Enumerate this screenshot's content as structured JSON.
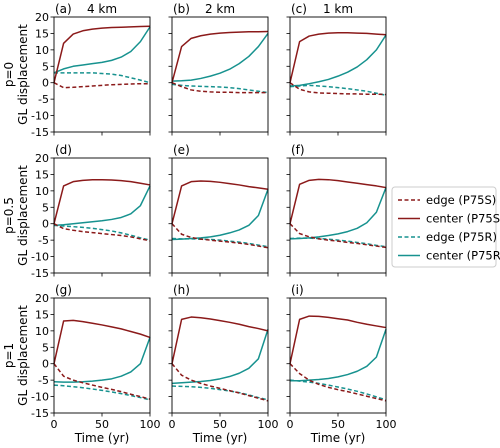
{
  "figure": {
    "legend": {
      "placement": "right",
      "entries": [
        {
          "label": "edge (P75S)",
          "color": "#8b1a1a",
          "dash": true
        },
        {
          "label": "center (P75S)",
          "color": "#8b1a1a",
          "dash": false
        },
        {
          "label": "edge (P75R)",
          "color": "#17928f",
          "dash": true
        },
        {
          "label": "center (P75R)",
          "color": "#17928f",
          "dash": false
        }
      ]
    },
    "colors": {
      "P75S": "#8b1a1a",
      "P75R": "#17928f"
    }
  },
  "chart_data": [
    {
      "type": "line",
      "panel": "(a)",
      "column_title": "4 km",
      "row_label": "p=0",
      "ylabel": "GL displacement",
      "xlabel": "",
      "xlim": [
        0,
        100
      ],
      "ylim": [
        -15,
        20
      ],
      "x": [
        0,
        10,
        20,
        30,
        40,
        50,
        60,
        70,
        80,
        90,
        100
      ],
      "series": [
        {
          "name": "edge (P75S)",
          "values": [
            0,
            -1.5,
            -1.4,
            -1.2,
            -1.0,
            -0.8,
            -0.6,
            -0.5,
            -0.4,
            -0.3,
            -0.3
          ]
        },
        {
          "name": "center (P75S)",
          "values": [
            0,
            12,
            14.8,
            15.8,
            16.3,
            16.6,
            16.8,
            16.9,
            17.0,
            17.1,
            17.2
          ]
        },
        {
          "name": "edge (P75R)",
          "values": [
            3,
            3,
            3,
            3,
            3,
            2.8,
            2.6,
            2.2,
            1.5,
            0.8,
            0
          ]
        },
        {
          "name": "center (P75R)",
          "values": [
            3,
            4.2,
            5.0,
            5.4,
            5.8,
            6.2,
            6.8,
            7.8,
            9.5,
            12.5,
            17.0
          ]
        }
      ]
    },
    {
      "type": "line",
      "panel": "(b)",
      "column_title": "2 km",
      "row_label": "",
      "ylabel": "",
      "xlabel": "",
      "xlim": [
        0,
        100
      ],
      "ylim": [
        -15,
        20
      ],
      "x": [
        0,
        10,
        20,
        30,
        40,
        50,
        60,
        70,
        80,
        90,
        100
      ],
      "series": [
        {
          "name": "edge (P75S)",
          "values": [
            0,
            -1.2,
            -2.2,
            -2.6,
            -2.8,
            -2.9,
            -2.9,
            -3.0,
            -3.0,
            -3.0,
            -3.0
          ]
        },
        {
          "name": "center (P75S)",
          "values": [
            0,
            11,
            13.5,
            14.3,
            14.8,
            15.1,
            15.3,
            15.4,
            15.5,
            15.5,
            15.6
          ]
        },
        {
          "name": "edge (P75R)",
          "values": [
            -0.5,
            -0.8,
            -1.0,
            -1.1,
            -1.2,
            -1.3,
            -1.5,
            -1.8,
            -2.2,
            -2.6,
            -3.0
          ]
        },
        {
          "name": "center (P75R)",
          "values": [
            0.5,
            0.6,
            0.8,
            1.3,
            2.0,
            2.9,
            4.1,
            5.8,
            8.0,
            11.0,
            15.0
          ]
        }
      ]
    },
    {
      "type": "line",
      "panel": "(c)",
      "column_title": "1 km",
      "row_label": "",
      "ylabel": "",
      "xlabel": "",
      "xlim": [
        0,
        100
      ],
      "ylim": [
        -15,
        20
      ],
      "x": [
        0,
        10,
        20,
        30,
        40,
        50,
        60,
        70,
        80,
        90,
        100
      ],
      "series": [
        {
          "name": "edge (P75S)",
          "values": [
            0,
            -2.0,
            -2.8,
            -3.1,
            -3.2,
            -3.3,
            -3.4,
            -3.4,
            -3.5,
            -3.5,
            -3.6
          ]
        },
        {
          "name": "center (P75S)",
          "values": [
            0,
            12.5,
            14.2,
            14.8,
            15.1,
            15.2,
            15.2,
            15.1,
            15.0,
            14.8,
            14.6
          ]
        },
        {
          "name": "edge (P75R)",
          "values": [
            -1.2,
            -1.0,
            -0.8,
            -1.0,
            -1.2,
            -1.5,
            -1.8,
            -2.2,
            -2.6,
            -3.2,
            -3.8
          ]
        },
        {
          "name": "center (P75R)",
          "values": [
            -1.0,
            -0.8,
            -0.3,
            0.3,
            1.0,
            2.0,
            3.2,
            4.8,
            7.0,
            10.0,
            14.5
          ]
        }
      ]
    },
    {
      "type": "line",
      "panel": "(d)",
      "column_title": "",
      "row_label": "p=0.5",
      "ylabel": "GL displacement",
      "xlabel": "",
      "xlim": [
        0,
        100
      ],
      "ylim": [
        -15,
        20
      ],
      "x": [
        0,
        10,
        20,
        30,
        40,
        50,
        60,
        70,
        80,
        90,
        100
      ],
      "series": [
        {
          "name": "edge (P75S)",
          "values": [
            0,
            -1.5,
            -2.0,
            -2.4,
            -2.7,
            -3.0,
            -3.3,
            -3.6,
            -4.0,
            -4.6,
            -5.2
          ]
        },
        {
          "name": "center (P75S)",
          "values": [
            0,
            11.5,
            12.8,
            13.2,
            13.4,
            13.4,
            13.3,
            13.1,
            12.8,
            12.3,
            11.8
          ]
        },
        {
          "name": "edge (P75R)",
          "values": [
            -0.5,
            -0.7,
            -0.9,
            -1.1,
            -1.4,
            -1.8,
            -2.2,
            -2.8,
            -3.5,
            -4.3,
            -5.0
          ]
        },
        {
          "name": "center (P75R)",
          "values": [
            -0.5,
            -0.3,
            0,
            0.3,
            0.6,
            0.9,
            1.3,
            1.9,
            3.0,
            5.5,
            11.5
          ]
        }
      ]
    },
    {
      "type": "line",
      "panel": "(e)",
      "column_title": "",
      "row_label": "",
      "ylabel": "",
      "xlabel": "",
      "xlim": [
        0,
        100
      ],
      "ylim": [
        -15,
        20
      ],
      "x": [
        0,
        10,
        20,
        30,
        40,
        50,
        60,
        70,
        80,
        90,
        100
      ],
      "series": [
        {
          "name": "edge (P75S)",
          "values": [
            0,
            -3.2,
            -4.2,
            -4.7,
            -5.0,
            -5.3,
            -5.6,
            -5.9,
            -6.3,
            -6.8,
            -7.3
          ]
        },
        {
          "name": "center (P75S)",
          "values": [
            0,
            11.5,
            12.8,
            13.0,
            12.9,
            12.6,
            12.2,
            11.8,
            11.3,
            10.9,
            10.5
          ]
        },
        {
          "name": "edge (P75R)",
          "values": [
            -4.5,
            -4.6,
            -4.6,
            -4.7,
            -4.8,
            -5.0,
            -5.3,
            -5.6,
            -6.0,
            -6.5,
            -7.0
          ]
        },
        {
          "name": "center (P75R)",
          "values": [
            -4.8,
            -4.7,
            -4.5,
            -4.3,
            -4.0,
            -3.5,
            -2.8,
            -1.9,
            -0.5,
            2.5,
            10.5
          ]
        }
      ]
    },
    {
      "type": "line",
      "panel": "(f)",
      "column_title": "",
      "row_label": "",
      "ylabel": "",
      "xlabel": "",
      "xlim": [
        0,
        100
      ],
      "ylim": [
        -15,
        20
      ],
      "x": [
        0,
        10,
        20,
        30,
        40,
        50,
        60,
        70,
        80,
        90,
        100
      ],
      "series": [
        {
          "name": "edge (P75S)",
          "values": [
            0,
            -3.0,
            -4.0,
            -4.6,
            -5.0,
            -5.3,
            -5.7,
            -6.0,
            -6.4,
            -6.8,
            -7.2
          ]
        },
        {
          "name": "center (P75S)",
          "values": [
            0,
            12.0,
            13.2,
            13.5,
            13.4,
            13.1,
            12.7,
            12.3,
            11.9,
            11.5,
            11.0
          ]
        },
        {
          "name": "edge (P75R)",
          "values": [
            -4.5,
            -4.4,
            -4.4,
            -4.5,
            -4.7,
            -5.0,
            -5.3,
            -5.7,
            -6.1,
            -6.6,
            -7.0
          ]
        },
        {
          "name": "center (P75R)",
          "values": [
            -4.6,
            -4.5,
            -4.3,
            -4.0,
            -3.6,
            -3.1,
            -2.4,
            -1.4,
            0.3,
            3.5,
            11.0
          ]
        }
      ]
    },
    {
      "type": "line",
      "panel": "(g)",
      "column_title": "",
      "row_label": "p=1",
      "ylabel": "GL displacement",
      "xlabel": "Time (yr)",
      "xlim": [
        0,
        100
      ],
      "ylim": [
        -15,
        20
      ],
      "x": [
        0,
        10,
        20,
        30,
        40,
        50,
        60,
        70,
        80,
        90,
        100
      ],
      "series": [
        {
          "name": "edge (P75S)",
          "values": [
            0,
            -3.8,
            -5.0,
            -5.8,
            -6.5,
            -7.2,
            -7.8,
            -8.5,
            -9.3,
            -10.0,
            -10.8
          ]
        },
        {
          "name": "center (P75S)",
          "values": [
            0,
            13.0,
            13.2,
            12.8,
            12.3,
            11.8,
            11.2,
            10.6,
            9.8,
            9.0,
            8.0
          ]
        },
        {
          "name": "edge (P75R)",
          "values": [
            -6.5,
            -6.7,
            -7.0,
            -7.3,
            -7.7,
            -8.1,
            -8.6,
            -9.1,
            -9.7,
            -10.3,
            -11.0
          ]
        },
        {
          "name": "center (P75R)",
          "values": [
            -5.5,
            -5.6,
            -5.6,
            -5.5,
            -5.3,
            -5.0,
            -4.6,
            -3.8,
            -2.5,
            0,
            8.0
          ]
        }
      ]
    },
    {
      "type": "line",
      "panel": "(h)",
      "column_title": "",
      "row_label": "",
      "ylabel": "",
      "xlabel": "Time (yr)",
      "xlim": [
        0,
        100
      ],
      "ylim": [
        -15,
        20
      ],
      "x": [
        0,
        10,
        20,
        30,
        40,
        50,
        60,
        70,
        80,
        90,
        100
      ],
      "series": [
        {
          "name": "edge (P75S)",
          "values": [
            0,
            -3.5,
            -5.0,
            -6.0,
            -6.8,
            -7.5,
            -8.2,
            -8.9,
            -9.7,
            -10.5,
            -11.3
          ]
        },
        {
          "name": "center (P75S)",
          "values": [
            0,
            13.5,
            14.2,
            14.0,
            13.6,
            13.1,
            12.6,
            12.0,
            11.3,
            10.7,
            10.0
          ]
        },
        {
          "name": "edge (P75R)",
          "values": [
            -6.8,
            -6.9,
            -7.0,
            -7.2,
            -7.5,
            -7.9,
            -8.3,
            -8.8,
            -9.5,
            -10.3,
            -11.0
          ]
        },
        {
          "name": "center (P75R)",
          "values": [
            -6.0,
            -5.8,
            -5.6,
            -5.4,
            -5.1,
            -4.6,
            -3.9,
            -2.9,
            -1.4,
            1.5,
            10.5
          ]
        }
      ]
    },
    {
      "type": "line",
      "panel": "(i)",
      "column_title": "",
      "row_label": "",
      "ylabel": "",
      "xlabel": "Time (yr)",
      "xlim": [
        0,
        100
      ],
      "ylim": [
        -15,
        20
      ],
      "x": [
        0,
        10,
        20,
        30,
        40,
        50,
        60,
        70,
        80,
        90,
        100
      ],
      "series": [
        {
          "name": "edge (P75S)",
          "values": [
            0,
            -3.0,
            -5.0,
            -6.3,
            -7.2,
            -7.9,
            -8.5,
            -9.2,
            -9.9,
            -10.6,
            -11.3
          ]
        },
        {
          "name": "center (P75S)",
          "values": [
            0,
            13.5,
            14.5,
            14.4,
            14.1,
            13.7,
            13.3,
            12.6,
            12.0,
            11.5,
            11.0
          ]
        },
        {
          "name": "edge (P75R)",
          "values": [
            -5.0,
            -5.3,
            -5.6,
            -6.0,
            -6.5,
            -7.1,
            -7.7,
            -8.4,
            -9.2,
            -10.1,
            -11.0
          ]
        },
        {
          "name": "center (P75R)",
          "values": [
            -5.2,
            -5.2,
            -5.0,
            -4.8,
            -4.5,
            -4.0,
            -3.3,
            -2.3,
            -0.8,
            2.0,
            10.5
          ]
        }
      ]
    }
  ]
}
